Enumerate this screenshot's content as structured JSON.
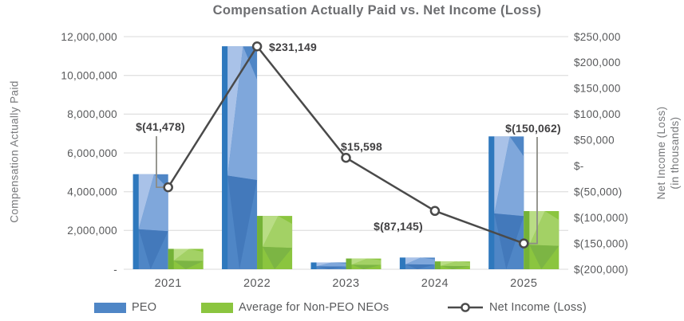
{
  "chart_data": {
    "type": "bar",
    "title": "Compensation Actually Paid vs. Net Income (Loss)",
    "categories": [
      "2021",
      "2022",
      "2023",
      "2024",
      "2025"
    ],
    "series": [
      {
        "name": "PEO",
        "type": "bar",
        "axis": "left",
        "color": "#4f86c6",
        "shades": {
          "dark": "#2e78bd",
          "light": "#7fa7db",
          "lighter": "#a9c2e8",
          "deep": "#4379bb"
        },
        "values": [
          4900000,
          11500000,
          350000,
          600000,
          6850000
        ]
      },
      {
        "name": "Average for Non-PEO NEOs",
        "type": "bar",
        "axis": "left",
        "color": "#8bc53f",
        "shades": {
          "dark": "#74b237",
          "light": "#a3d165",
          "lighter": "#b9dd85",
          "deep": "#7cb544"
        },
        "values": [
          1050000,
          2750000,
          550000,
          400000,
          3000000
        ]
      },
      {
        "name": "Net Income (Loss)",
        "type": "line",
        "axis": "right",
        "color": "#4a4a4a",
        "marker": "open-circle",
        "values": [
          -41478,
          231149,
          15598,
          -87145,
          -150062
        ],
        "point_labels": [
          "$(41,478)",
          "$231,149",
          "$15,598",
          "$(87,145)",
          "$(150,062)"
        ]
      }
    ],
    "left_axis": {
      "title": "Compensation Actually Paid",
      "min": 0,
      "max": 12000000,
      "tick_step": 2000000,
      "tick_labels": [
        "12,000,000",
        "10,000,000",
        "8,000,000",
        "6,000,000",
        "4,000,000",
        "2,000,000",
        "-"
      ]
    },
    "right_axis": {
      "title_line1": "Net Income (Loss)",
      "title_line2": "(in thousands)",
      "min": -200000,
      "max": 250000,
      "tick_step": 50000,
      "tick_labels": [
        "$250,000",
        "$200,000",
        "$150,000",
        "$100,000",
        "$50,000",
        "$-",
        "$(50,000)",
        "$(100,000)",
        "$(150,000)",
        "$(200,000)"
      ]
    },
    "grid": true,
    "gridline_color": "#e2e2e2",
    "legend_position": "bottom",
    "text_color": "#58595b",
    "data_label_color": "#414042",
    "leader_line_color": "#8c8c85"
  },
  "legend": {
    "items": [
      {
        "label": "PEO"
      },
      {
        "label": "Average for Non-PEO NEOs"
      },
      {
        "label": "Net Income (Loss)"
      }
    ]
  }
}
